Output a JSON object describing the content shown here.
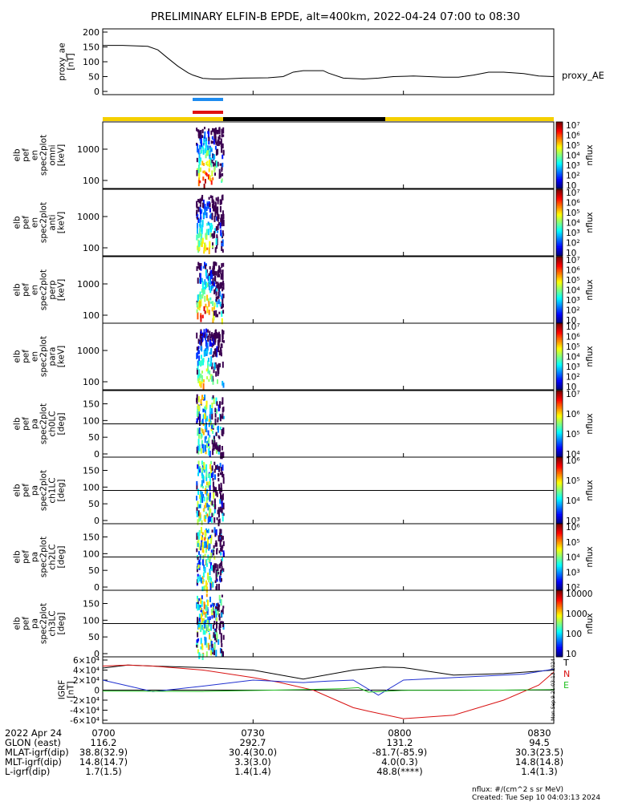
{
  "title": "PRELIMINARY ELFIN-B EPDE, alt=400km, 2022-04-24 07:00 to 08:30",
  "chart_data": [
    {
      "type": "line",
      "ylabel_lines": [
        "proxy_ae",
        "[nT]"
      ],
      "legend": "proxy_AE",
      "yticks": [
        "0",
        "50",
        "100",
        "150",
        "200"
      ],
      "ylim": [
        0,
        200
      ],
      "series": [
        {
          "name": "proxy_AE",
          "x": [
            0,
            4,
            9,
            11,
            13,
            15,
            17,
            18,
            20,
            22,
            24,
            28,
            33,
            36,
            38,
            40,
            44,
            45,
            48,
            52,
            55,
            58,
            62,
            65,
            68,
            71,
            74,
            77,
            80,
            84,
            87,
            90
          ],
          "values": [
            155,
            155,
            152,
            140,
            112,
            85,
            63,
            55,
            44,
            42,
            42,
            45,
            46,
            50,
            65,
            70,
            70,
            62,
            45,
            42,
            45,
            50,
            52,
            50,
            48,
            48,
            55,
            65,
            65,
            60,
            52,
            50
          ]
        }
      ]
    },
    {
      "type": "heatmap",
      "ylabel_lines": [
        "elb",
        "pef",
        "en",
        "spec2plot",
        "omni",
        "[keV]"
      ],
      "yticks": [
        "100",
        "1000"
      ],
      "zticks": [
        "10",
        "10²",
        "10³",
        "10⁴",
        "10⁵",
        "10⁶",
        "10⁷"
      ],
      "zlabel": "nflux"
    },
    {
      "type": "heatmap",
      "ylabel_lines": [
        "elb",
        "pef",
        "en",
        "spec2plot",
        "anti",
        "[keV]"
      ],
      "yticks": [
        "100",
        "1000"
      ],
      "zticks": [
        "10",
        "10²",
        "10³",
        "10⁴",
        "10⁵",
        "10⁶",
        "10⁷"
      ],
      "zlabel": "nflux"
    },
    {
      "type": "heatmap",
      "ylabel_lines": [
        "elb",
        "pef",
        "en",
        "spec2plot",
        "perp",
        "[keV]"
      ],
      "yticks": [
        "100",
        "1000"
      ],
      "zticks": [
        "10",
        "10²",
        "10³",
        "10⁴",
        "10⁵",
        "10⁶",
        "10⁷"
      ],
      "zlabel": "nflux"
    },
    {
      "type": "heatmap",
      "ylabel_lines": [
        "elb",
        "pef",
        "en",
        "spec2plot",
        "para",
        "[keV]"
      ],
      "yticks": [
        "100",
        "1000"
      ],
      "zticks": [
        "10",
        "10²",
        "10³",
        "10⁴",
        "10⁵",
        "10⁶",
        "10⁷"
      ],
      "zlabel": "nflux"
    },
    {
      "type": "heatmap",
      "ylabel_lines": [
        "elb",
        "pef",
        "pa",
        "spec2plot",
        "ch0LC",
        "[deg]"
      ],
      "yticks": [
        "0",
        "50",
        "100",
        "150"
      ],
      "zticks": [
        "10⁴",
        "10⁵",
        "10⁶",
        "10⁷"
      ],
      "zlabel": "nflux"
    },
    {
      "type": "heatmap",
      "ylabel_lines": [
        "elb",
        "pef",
        "pa",
        "spec2plot",
        "ch1LC",
        "[deg]"
      ],
      "yticks": [
        "0",
        "50",
        "100",
        "150"
      ],
      "zticks": [
        "10³",
        "10⁴",
        "10⁵",
        "10⁶"
      ],
      "zlabel": "nflux"
    },
    {
      "type": "heatmap",
      "ylabel_lines": [
        "elb",
        "pef",
        "pa",
        "spec2plot",
        "ch2LC",
        "[deg]"
      ],
      "yticks": [
        "0",
        "50",
        "100",
        "150"
      ],
      "zticks": [
        "10²",
        "10³",
        "10⁴",
        "10⁵",
        "10⁶"
      ],
      "zlabel": "nflux"
    },
    {
      "type": "heatmap",
      "ylabel_lines": [
        "elb",
        "pef",
        "pa",
        "spec2plot",
        "ch3LC",
        "[deg]"
      ],
      "yticks": [
        "0",
        "50",
        "100",
        "150"
      ],
      "zticks": [
        "10",
        "100",
        "1000",
        "10000"
      ],
      "zlabel": "nflux"
    },
    {
      "type": "line",
      "ylabel_lines": [
        "IGRF",
        "[nT]"
      ],
      "yticks": [
        "-6×10⁴",
        "-4×10⁴",
        "-2×10⁴",
        "0",
        "2×10⁴",
        "4×10⁴",
        "6×10⁴"
      ],
      "ylim": [
        -60000,
        60000
      ],
      "legend_items": [
        "T",
        "N",
        "E"
      ],
      "side_note": "Mon Sep 9 21:03:13 2024",
      "series": [
        {
          "name": "T",
          "x": [
            0,
            5,
            10,
            20,
            30,
            40,
            50,
            56,
            60,
            70,
            80,
            90
          ],
          "values": [
            44000,
            50000,
            48000,
            45000,
            40000,
            22000,
            40000,
            46000,
            45000,
            30000,
            33000,
            40000
          ]
        },
        {
          "name": "N",
          "x": [
            0,
            5,
            10,
            20,
            30,
            35,
            42,
            50,
            53,
            60,
            70,
            80,
            87,
            90
          ],
          "values": [
            48000,
            50000,
            48000,
            40000,
            25000,
            16000,
            0,
            -35000,
            -42000,
            -57000,
            -50000,
            -20000,
            10000,
            36000
          ]
        },
        {
          "name": "E",
          "x": [
            0,
            10,
            20,
            30,
            40,
            45,
            50,
            55,
            60,
            70,
            80,
            84,
            90
          ],
          "values": [
            20000,
            -3000,
            8000,
            20000,
            15000,
            18000,
            20000,
            -10000,
            20000,
            25000,
            30000,
            32000,
            42000
          ]
        },
        {
          "name": "green",
          "x": [
            0,
            20,
            40,
            48,
            51,
            53,
            55,
            60,
            70,
            80,
            90
          ],
          "values": [
            -2000,
            -2500,
            1000,
            3000,
            5000,
            -4000,
            -3000,
            -500,
            -300,
            0,
            1000
          ]
        }
      ]
    }
  ],
  "x_axis": {
    "ticks": [
      "0700",
      "0730",
      "0800",
      "0830"
    ],
    "row_labels": [
      "2022 Apr 24",
      "GLON (east)",
      "MLAT-igrf(dip)",
      "MLT-igrf(dip)",
      "L-igrf(dip)"
    ],
    "columns": [
      [
        "0700",
        "116.2",
        "38.8(32.9)",
        "14.8(14.7)",
        "1.7(1.5)"
      ],
      [
        "0730",
        "292.7",
        "30.4(30.0)",
        "3.3(3.0)",
        "1.4(1.4)"
      ],
      [
        "0800",
        "131.2",
        "-81.7(-85.9)",
        "4.0(0.3)",
        "48.8(****)"
      ],
      [
        "0830",
        "94.5",
        "30.3(23.5)",
        "14.8(14.8)",
        "1.4(1.3)"
      ]
    ]
  },
  "footer": {
    "units": "nflux: #/(cm^2 s sr MeV)",
    "created": "Created: Tue Sep 10 04:03:13 2024"
  },
  "colors": {
    "blue_bar": "#1e8cf0",
    "red_bar": "#e01010",
    "yellow_bar": "#f5d000",
    "black_bar": "#000000",
    "trace_T": "#000000",
    "trace_N": "#d81010",
    "trace_E": "#2030d0",
    "trace_green": "#20c020"
  }
}
